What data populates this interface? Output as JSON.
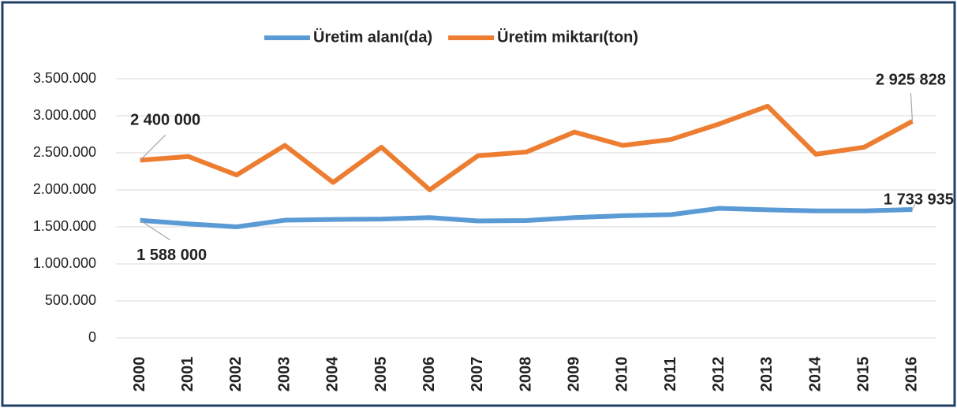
{
  "chart_data": {
    "type": "line",
    "categories": [
      "2000",
      "2001",
      "2002",
      "2003",
      "2004",
      "2005",
      "2006",
      "2007",
      "2008",
      "2009",
      "2010",
      "2011",
      "2012",
      "2013",
      "2014",
      "2015",
      "2016"
    ],
    "series": [
      {
        "name": "Üretim alanı(da)",
        "color": "#5b9bd5",
        "values": [
          1588000,
          1540000,
          1500000,
          1590000,
          1600000,
          1605000,
          1625000,
          1580000,
          1585000,
          1625000,
          1650000,
          1665000,
          1750000,
          1730000,
          1715000,
          1715000,
          1733935
        ],
        "value_labels": [
          "1 588 000",
          null,
          null,
          null,
          null,
          null,
          null,
          null,
          null,
          null,
          null,
          null,
          null,
          null,
          null,
          null,
          "1 733 935"
        ]
      },
      {
        "name": "Üretim miktarı(ton)",
        "color": "#ed7d31",
        "values": [
          2400000,
          2450000,
          2200000,
          2600000,
          2100000,
          2575000,
          2000000,
          2460000,
          2510000,
          2780000,
          2600000,
          2680000,
          2890000,
          3130000,
          2480000,
          2575000,
          2925828
        ],
        "value_labels": [
          "2 400 000",
          null,
          null,
          null,
          null,
          null,
          null,
          null,
          null,
          null,
          null,
          null,
          null,
          null,
          null,
          null,
          "2 925 828"
        ]
      }
    ],
    "ylim": [
      0,
      3500000
    ],
    "yticks": [
      0,
      {
        "value": 500000,
        "label": "500.000"
      },
      {
        "value": 1000000,
        "label": "1.000.000"
      },
      {
        "value": 1500000,
        "label": "1.500.000"
      },
      {
        "value": 2000000,
        "label": "2.000.000"
      },
      {
        "value": 2500000,
        "label": "2.500.000"
      },
      {
        "value": 3000000,
        "label": "3.000.000"
      },
      {
        "value": 3500000,
        "label": "3.500.000"
      }
    ],
    "grid": true,
    "legend": "top"
  }
}
